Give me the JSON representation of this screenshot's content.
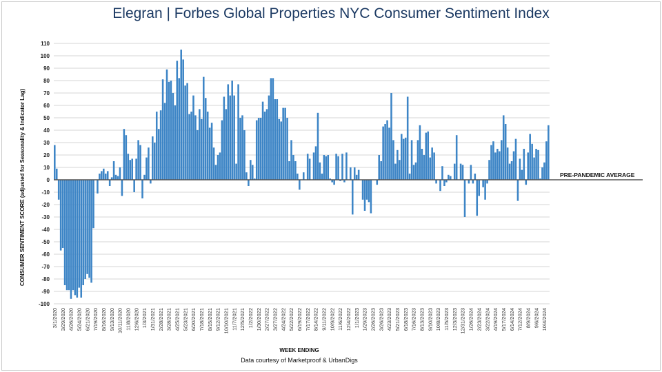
{
  "chart_data": {
    "type": "bar",
    "title": "Elegran | Forbes Global Properties NYC Consumer Sentiment Index",
    "xlabel": "WEEK ENDING",
    "ylabel": "CONSUMER SENTIMENT SCORE (adjusted for Seasonality & Indicator Lag)",
    "footnote": "Data courtesy of Marketproof & UrbanDigs",
    "reference_line": {
      "value": 0,
      "label": "PRE-PANDEMIC AVERAGE"
    },
    "ylim": [
      -100,
      110
    ],
    "yticks": [
      110,
      100,
      90,
      80,
      70,
      60,
      50,
      40,
      30,
      20,
      10,
      0,
      -10,
      -20,
      -30,
      -40,
      -50,
      -60,
      -70,
      -80,
      -90,
      -100
    ],
    "grid": true,
    "bar_color": "#3d85c6",
    "x_tick_every_n_weeks": 4,
    "x_tick_labels": [
      "3/1/2020",
      "3/29/2020",
      "4/26/2020",
      "5/24/2020",
      "6/21/2020",
      "7/19/2020",
      "8/16/2020",
      "9/13/2020",
      "10/11/2020",
      "11/8/2020",
      "12/6/2020",
      "1/3/2021",
      "1/31/2021",
      "2/28/2021",
      "3/28/2021",
      "4/25/2021",
      "5/23/2021",
      "6/20/2021",
      "7/18/2021",
      "8/15/2021",
      "9/12/2021",
      "10/10/2021",
      "11/7/2021",
      "12/5/2021",
      "1/2/2022",
      "1/30/2022",
      "2/27/2022",
      "3/27/2022",
      "4/24/2022",
      "5/22/2022",
      "6/19/2022",
      "7/17/2022",
      "8/14/2022",
      "9/11/2022",
      "10/9/2022",
      "11/6/2022",
      "12/4/2022",
      "1/1/2023",
      "1/29/2023",
      "2/26/2023",
      "3/26/2023",
      "4/23/2023",
      "5/21/2023",
      "6/18/2023",
      "7/16/2023",
      "8/13/2023",
      "9/10/2023",
      "10/8/2023",
      "11/5/2023",
      "12/3/2023",
      "12/31/2023",
      "1/26/2024",
      "2/23/2024",
      "3/22/2024",
      "4/19/2024",
      "5/17/2024",
      "6/14/2024",
      "7/12/2024",
      "8/9/2024",
      "9/6/2024",
      "10/4/2024"
    ],
    "values": [
      28,
      9,
      -16,
      -57,
      -55,
      -85,
      -89,
      -89,
      -96,
      -89,
      -93,
      -95,
      -87,
      -95,
      -85,
      -80,
      -76,
      -79,
      -83,
      -39,
      0,
      -11,
      5,
      7,
      9,
      5,
      7,
      -5,
      2,
      15,
      4,
      3,
      10,
      -13,
      41,
      36,
      21,
      16,
      17,
      -10,
      17,
      32,
      28,
      -15,
      4,
      18,
      26,
      -3,
      35,
      30,
      55,
      41,
      56,
      81,
      62,
      89,
      79,
      80,
      70,
      60,
      96,
      82,
      105,
      97,
      76,
      78,
      53,
      55,
      68,
      52,
      40,
      57,
      49,
      83,
      66,
      55,
      42,
      46,
      26,
      12,
      20,
      22,
      48,
      67,
      57,
      77,
      68,
      80,
      68,
      13,
      77,
      50,
      52,
      40,
      6,
      -5,
      16,
      12,
      1,
      48,
      50,
      50,
      63,
      55,
      57,
      68,
      82,
      82,
      65,
      65,
      49,
      47,
      58,
      58,
      50,
      15,
      32,
      20,
      15,
      5,
      -8,
      0,
      6,
      0,
      21,
      17,
      0,
      22,
      27,
      54,
      14,
      5,
      20,
      19,
      20,
      1,
      -2,
      -4,
      21,
      19,
      -1,
      21,
      -2,
      22,
      0,
      10,
      -28,
      10,
      4,
      8,
      0,
      -16,
      -25,
      -16,
      -18,
      -27,
      0,
      0,
      -4,
      20,
      15,
      43,
      45,
      48,
      42,
      70,
      32,
      13,
      24,
      16,
      37,
      33,
      34,
      67,
      5,
      32,
      12,
      14,
      32,
      44,
      25,
      20,
      38,
      39,
      18,
      26,
      22,
      -3,
      0,
      -9,
      11,
      -5,
      -2,
      4,
      3,
      0,
      13,
      36,
      0,
      13,
      12,
      -30,
      0,
      -3,
      12,
      -3,
      5,
      -29,
      -13,
      0,
      -6,
      -16,
      -3,
      16,
      28,
      31,
      22,
      25,
      23,
      32,
      52,
      45,
      26,
      13,
      15,
      23,
      33,
      -17,
      17,
      8,
      25,
      -4,
      22,
      37,
      29,
      18,
      25,
      24,
      1,
      10,
      14,
      31,
      44
    ]
  }
}
